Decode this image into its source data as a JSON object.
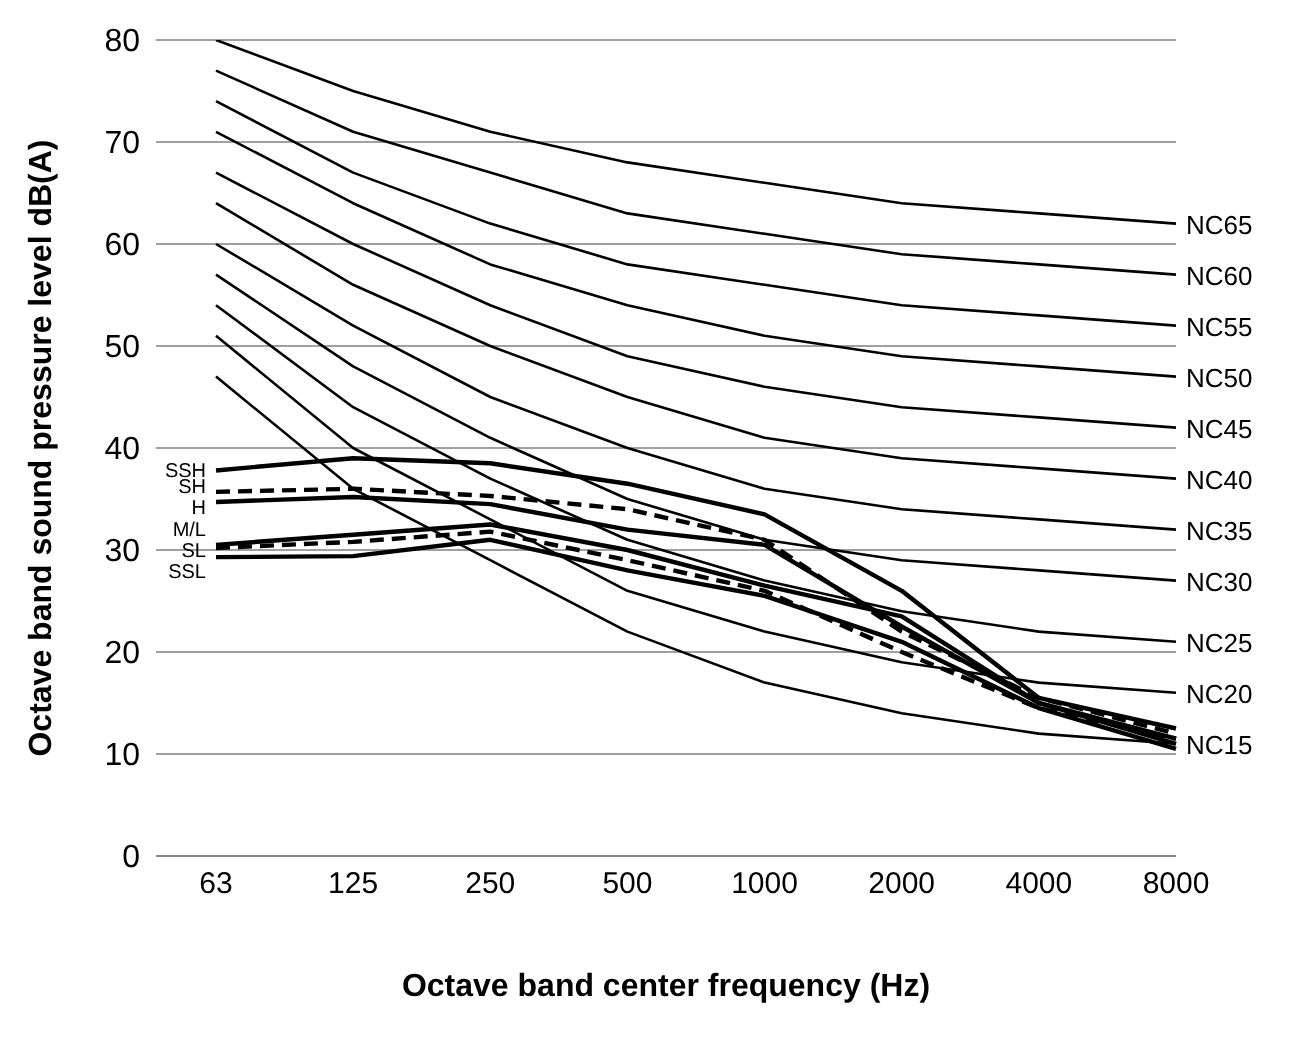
{
  "chart_data": {
    "type": "line",
    "xlabel": "Octave band center frequency (Hz)",
    "ylabel": "Octave band sound pressure level dB(A)",
    "categories": [
      "63",
      "125",
      "250",
      "500",
      "1000",
      "2000",
      "4000",
      "8000"
    ],
    "ylim": [
      0,
      80
    ],
    "yticks": [
      0,
      10,
      20,
      30,
      40,
      50,
      60,
      70,
      80
    ],
    "grid": "y",
    "legend": false,
    "marker": "none",
    "series": [
      {
        "name": "NC65",
        "color": "#000000",
        "values": [
          80,
          75,
          71,
          68,
          66,
          64,
          63,
          62
        ]
      },
      {
        "name": "NC60",
        "color": "#000000",
        "values": [
          77,
          71,
          67,
          63,
          61,
          59,
          58,
          57
        ]
      },
      {
        "name": "NC55",
        "color": "#000000",
        "values": [
          74,
          67,
          62,
          58,
          56,
          54,
          53,
          52
        ]
      },
      {
        "name": "NC50",
        "color": "#000000",
        "values": [
          71,
          64,
          58,
          54,
          51,
          49,
          48,
          47
        ]
      },
      {
        "name": "NC45",
        "color": "#000000",
        "values": [
          67,
          60,
          54,
          49,
          46,
          44,
          43,
          42
        ]
      },
      {
        "name": "NC40",
        "color": "#000000",
        "values": [
          64,
          56,
          50,
          45,
          41,
          39,
          38,
          37
        ]
      },
      {
        "name": "NC35",
        "color": "#000000",
        "values": [
          60,
          52,
          45,
          40,
          36,
          34,
          33,
          32
        ]
      },
      {
        "name": "NC30",
        "color": "#000000",
        "values": [
          57,
          48,
          41,
          35,
          31,
          29,
          28,
          27
        ]
      },
      {
        "name": "NC25",
        "color": "#000000",
        "values": [
          54,
          44,
          37,
          31,
          27,
          24,
          22,
          21
        ]
      },
      {
        "name": "NC20",
        "color": "#000000",
        "values": [
          51,
          40,
          33,
          26,
          22,
          19,
          17,
          16
        ]
      },
      {
        "name": "NC15",
        "color": "#000000",
        "values": [
          47,
          36,
          29,
          22,
          17,
          14,
          12,
          11
        ]
      },
      {
        "name": "SSH",
        "color": "#000000",
        "line_style": "solid",
        "values": [
          37.8,
          39,
          38.5,
          36.5,
          33.5,
          26,
          15.5,
          12.5
        ]
      },
      {
        "name": "SH",
        "color": "#000000",
        "line_style": "dashed",
        "values": [
          35.7,
          36,
          35.3,
          34,
          31,
          22,
          15.5,
          12
        ]
      },
      {
        "name": "H",
        "color": "#000000",
        "line_style": "solid",
        "values": [
          34.7,
          35.2,
          34.5,
          32,
          30.5,
          22.5,
          15,
          11.5
        ]
      },
      {
        "name": "M/L",
        "color": "#000000",
        "line_style": "solid",
        "values": [
          30.5,
          31.5,
          32.5,
          30,
          26.5,
          23.5,
          15,
          11
        ]
      },
      {
        "name": "SL",
        "color": "#000000",
        "line_style": "dashed",
        "values": [
          30.2,
          30.8,
          31.8,
          29,
          26,
          20,
          14.5,
          11.5
        ]
      },
      {
        "name": "SSL",
        "color": "#000000",
        "line_style": "solid",
        "values": [
          29.3,
          29.4,
          31,
          28,
          25.5,
          21,
          14.5,
          10.5
        ]
      }
    ]
  }
}
